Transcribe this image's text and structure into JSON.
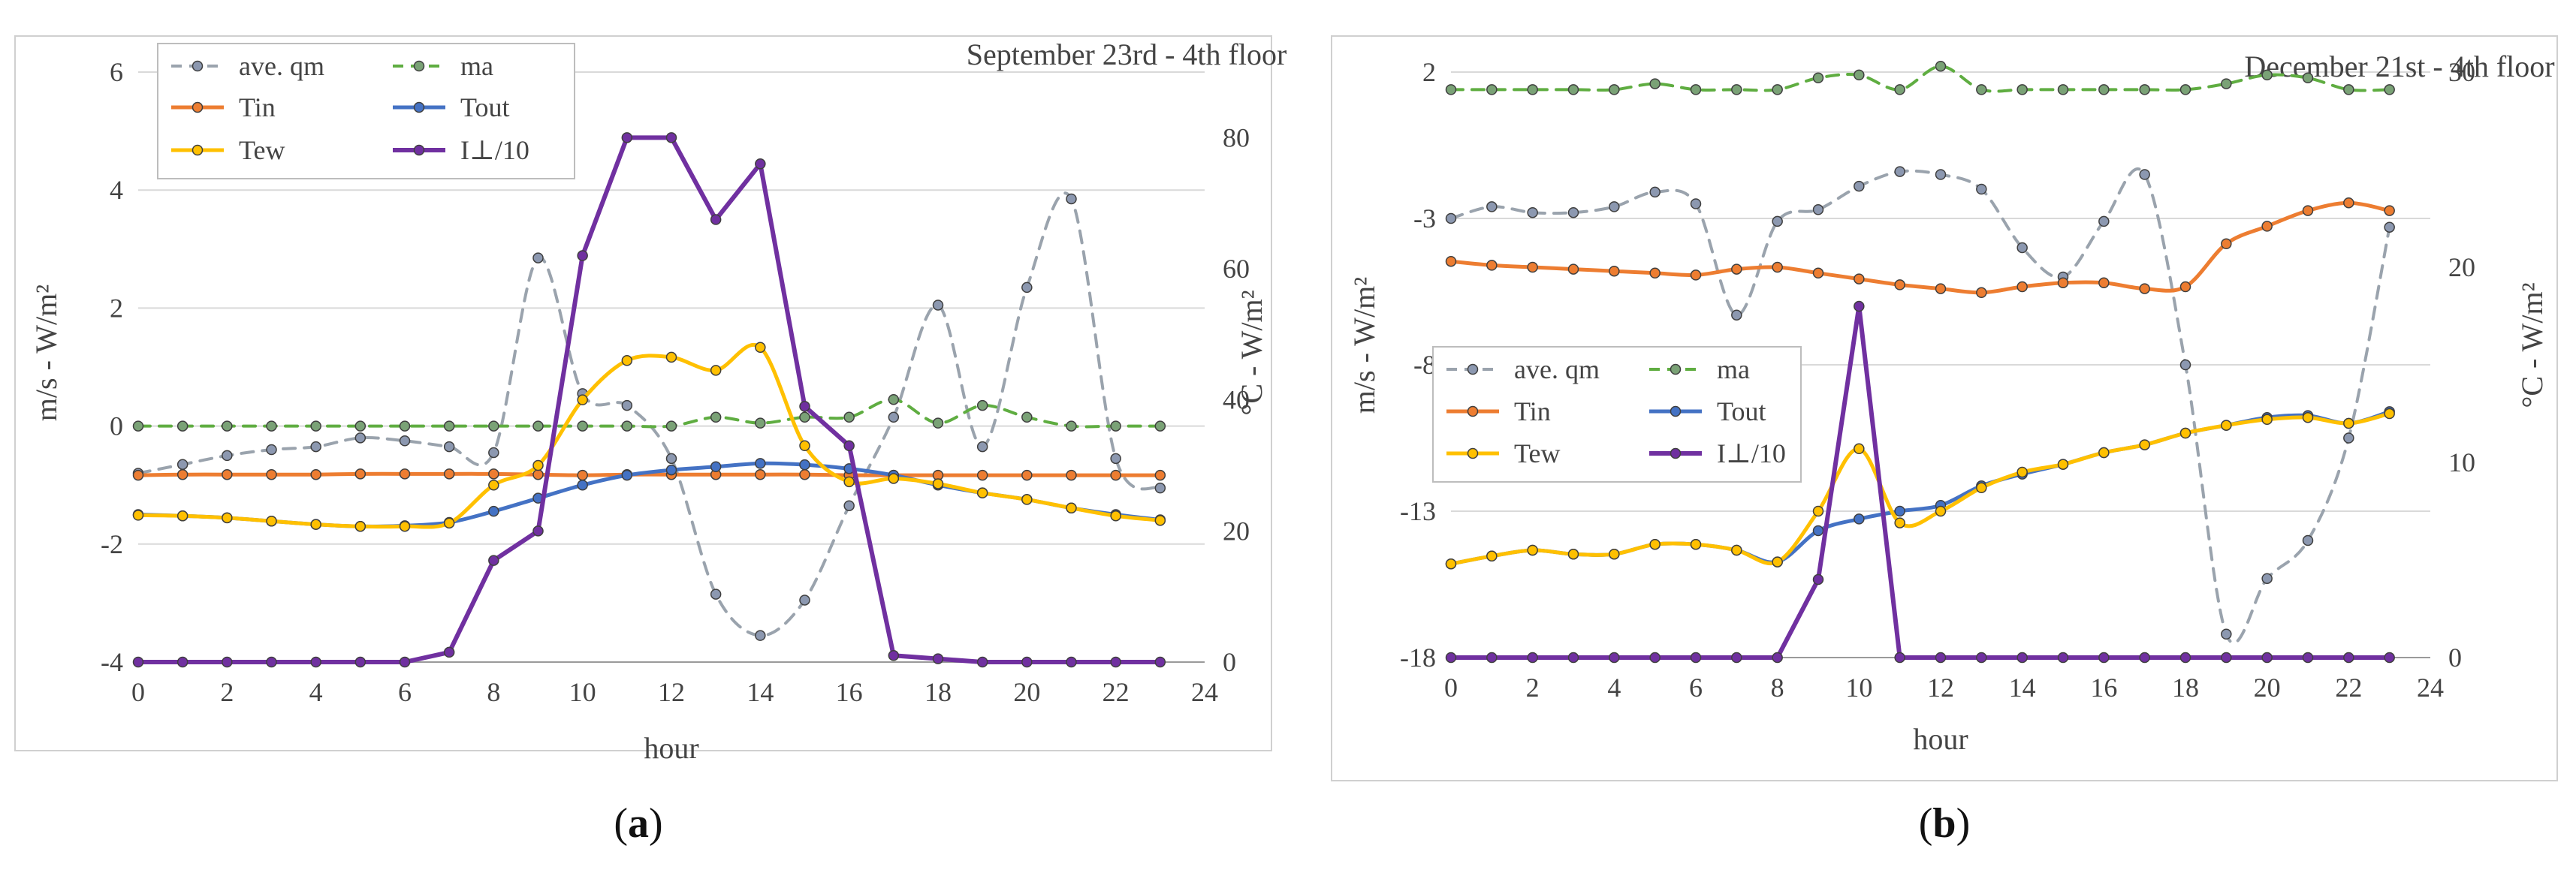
{
  "colors": {
    "qm": "#9aa3ad",
    "qm_marker": "#8c98b0",
    "ma": "#5fad41",
    "ma_marker": "#7aa276",
    "Tin": "#ed7d31",
    "Tout": "#4472c4",
    "Tew": "#ffc000",
    "I": "#7030a0",
    "marker_edge": "#3f3f3f"
  },
  "chart_data": [
    {
      "type": "line",
      "panel_id": "a",
      "caption": "a",
      "title": "September 23rd - 4th floor",
      "xlabel": "hour",
      "ylabel_left": "m/s - W/m²",
      "ylabel_right": "°C - W/m²",
      "x": [
        0,
        1,
        2,
        3,
        4,
        5,
        6,
        7,
        8,
        9,
        10,
        11,
        12,
        13,
        14,
        15,
        16,
        17,
        18,
        19,
        20,
        21,
        22,
        23
      ],
      "xlim": [
        0,
        24
      ],
      "xticks": [
        "0",
        "2",
        "4",
        "6",
        "8",
        "10",
        "12",
        "14",
        "16",
        "18",
        "20",
        "22",
        "24"
      ],
      "ylim_left": [
        -4,
        6
      ],
      "yticks_left": [
        "-4",
        "-2",
        "0",
        "2",
        "4",
        "6"
      ],
      "ylim_right": [
        0,
        90
      ],
      "yticks_right": [
        "0",
        "20",
        "40",
        "60",
        "80"
      ],
      "grid": true,
      "legend_position": "top-left",
      "series": [
        {
          "name": "ave. qm",
          "key": "qm",
          "axis": "left",
          "style": "dashed",
          "values": [
            -0.8,
            -0.65,
            -0.5,
            -0.4,
            -0.35,
            -0.2,
            -0.25,
            -0.35,
            -0.45,
            2.85,
            0.55,
            0.35,
            -0.55,
            -2.85,
            -3.55,
            -2.95,
            -1.35,
            0.15,
            2.05,
            -0.35,
            2.35,
            3.85,
            -0.55,
            -1.05
          ]
        },
        {
          "name": "ma",
          "key": "ma",
          "axis": "left",
          "style": "dashed",
          "values": [
            0,
            0,
            0,
            0,
            0,
            0,
            0,
            0,
            0,
            0,
            0,
            0,
            0,
            0.15,
            0.05,
            0.15,
            0.15,
            0.45,
            0.05,
            0.35,
            0.15,
            0,
            0,
            0
          ]
        },
        {
          "name": "Tin",
          "key": "Tin",
          "axis": "right",
          "values": [
            28.5,
            28.6,
            28.6,
            28.6,
            28.6,
            28.7,
            28.7,
            28.7,
            28.7,
            28.6,
            28.5,
            28.6,
            28.6,
            28.6,
            28.6,
            28.6,
            28.5,
            28.5,
            28.5,
            28.5,
            28.5,
            28.5,
            28.5,
            28.5
          ]
        },
        {
          "name": "Tout",
          "key": "Tout",
          "axis": "right",
          "values": [
            22.5,
            22.3,
            22,
            21.5,
            21,
            20.7,
            20.8,
            21.3,
            23,
            25,
            27,
            28.5,
            29.3,
            29.8,
            30.3,
            30.1,
            29.5,
            28.5,
            27,
            25.8,
            24.8,
            23.5,
            22.5,
            21.7
          ]
        },
        {
          "name": "Tew",
          "key": "Tew",
          "axis": "right",
          "values": [
            22.4,
            22.3,
            22,
            21.5,
            21,
            20.7,
            20.7,
            21.2,
            27,
            30,
            40,
            46,
            46.5,
            44.5,
            48,
            33,
            27.5,
            28,
            27.2,
            25.8,
            24.8,
            23.5,
            22.3,
            21.6
          ]
        },
        {
          "name": "I⊥/10",
          "key": "I",
          "axis": "right",
          "values": [
            0,
            0,
            0,
            0,
            0,
            0,
            0,
            1.5,
            15.5,
            20,
            62,
            80,
            80,
            67.5,
            76,
            39,
            33,
            1,
            0.5,
            0,
            0,
            0,
            0,
            0
          ]
        }
      ]
    },
    {
      "type": "line",
      "panel_id": "b",
      "caption": "b",
      "title": "December 21st - 4th floor",
      "xlabel": "hour",
      "ylabel_left": "m/s - W/m²",
      "ylabel_right": "°C - W/m²",
      "x": [
        0,
        1,
        2,
        3,
        4,
        5,
        6,
        7,
        8,
        9,
        10,
        11,
        12,
        13,
        14,
        15,
        16,
        17,
        18,
        19,
        20,
        21,
        22,
        23
      ],
      "xlim": [
        0,
        24
      ],
      "xticks": [
        "0",
        "2",
        "4",
        "6",
        "8",
        "10",
        "12",
        "14",
        "16",
        "18",
        "20",
        "22",
        "24"
      ],
      "ylim_left": [
        -18,
        2
      ],
      "yticks_left": [
        "-18",
        "-13",
        "-8",
        "-3",
        "2"
      ],
      "ylim_right": [
        0,
        30
      ],
      "yticks_right": [
        "0",
        "10",
        "20",
        "30"
      ],
      "grid": true,
      "legend_position": "middle-left",
      "series": [
        {
          "name": "ave. qm",
          "key": "qm",
          "axis": "left",
          "style": "dashed",
          "values": [
            -3,
            -2.6,
            -2.8,
            -2.8,
            -2.6,
            -2.1,
            -2.5,
            -6.3,
            -3.1,
            -2.7,
            -1.9,
            -1.4,
            -1.5,
            -2,
            -4,
            -5,
            -3.1,
            -1.5,
            -8,
            -17.2,
            -15.3,
            -14,
            -10.5,
            -3.3
          ]
        },
        {
          "name": "ma",
          "key": "ma",
          "axis": "left",
          "style": "dashed",
          "values": [
            1.4,
            1.4,
            1.4,
            1.4,
            1.4,
            1.6,
            1.4,
            1.4,
            1.4,
            1.8,
            1.9,
            1.4,
            2.2,
            1.4,
            1.4,
            1.4,
            1.4,
            1.4,
            1.4,
            1.6,
            1.9,
            1.8,
            1.4,
            1.4
          ]
        },
        {
          "name": "Tin",
          "key": "Tin",
          "axis": "right",
          "values": [
            20.3,
            20.1,
            20,
            19.9,
            19.8,
            19.7,
            19.6,
            19.9,
            20,
            19.7,
            19.4,
            19.1,
            18.9,
            18.7,
            19,
            19.2,
            19.2,
            18.9,
            19,
            21.2,
            22.1,
            22.9,
            23.3,
            22.9
          ]
        },
        {
          "name": "Tout",
          "key": "Tout",
          "axis": "right",
          "values": [
            4.8,
            5.2,
            5.5,
            5.3,
            5.3,
            5.8,
            5.8,
            5.5,
            4.9,
            6.5,
            7.1,
            7.5,
            7.8,
            8.8,
            9.4,
            9.9,
            10.5,
            10.9,
            11.5,
            11.9,
            12.3,
            12.4,
            12,
            12.6
          ]
        },
        {
          "name": "Tew",
          "key": "Tew",
          "axis": "right",
          "values": [
            4.8,
            5.2,
            5.5,
            5.3,
            5.3,
            5.8,
            5.8,
            5.5,
            4.9,
            7.5,
            10.7,
            6.9,
            7.5,
            8.7,
            9.5,
            9.9,
            10.5,
            10.9,
            11.5,
            11.9,
            12.2,
            12.3,
            12,
            12.5
          ]
        },
        {
          "name": "I⊥/10",
          "key": "I",
          "axis": "right",
          "values": [
            0,
            0,
            0,
            0,
            0,
            0,
            0,
            0,
            0,
            4,
            18,
            0,
            0,
            0,
            0,
            0,
            0,
            0,
            0,
            0,
            0,
            0,
            0,
            0
          ]
        }
      ]
    }
  ]
}
